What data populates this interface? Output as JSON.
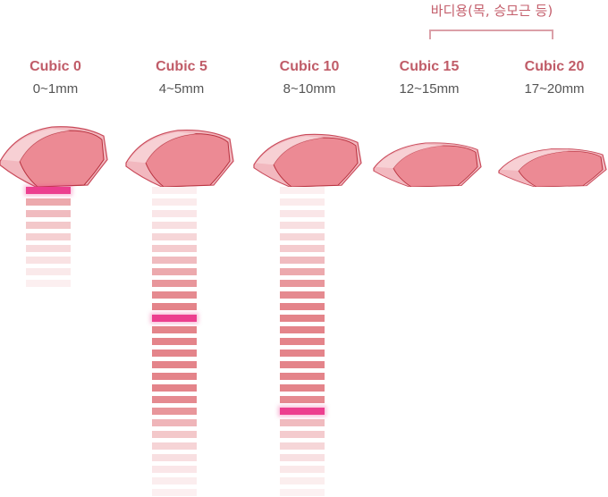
{
  "group_label": "바디용(목, 승모근 등)",
  "colors": {
    "title": "#c05c68",
    "bar": "#e4848a",
    "highlight": "#ec3f8f",
    "bracket": "#dba0a8"
  },
  "columns": [
    {
      "title": "Cubic 0",
      "range": "0~1mm",
      "bars": [
        1,
        0.7,
        0.55,
        0.45,
        0.38,
        0.3,
        0.24,
        0.18,
        0.13
      ],
      "highlight_index": 0
    },
    {
      "title": "Cubic 5",
      "range": "4~5mm",
      "bars": [
        0.13,
        0.16,
        0.2,
        0.26,
        0.33,
        0.42,
        0.55,
        0.7,
        0.85,
        0.95,
        1,
        1,
        1,
        1,
        1,
        1,
        1,
        1,
        0.95,
        0.85,
        0.6,
        0.45,
        0.35,
        0.26,
        0.2,
        0.15,
        0.12
      ],
      "highlight_index": 11
    },
    {
      "title": "Cubic 10",
      "range": "8~10mm",
      "bars": [
        0.13,
        0.16,
        0.2,
        0.26,
        0.33,
        0.42,
        0.55,
        0.7,
        0.85,
        0.95,
        1,
        1,
        1,
        1,
        1,
        1,
        1,
        1,
        0.95,
        1,
        0.55,
        0.42,
        0.33,
        0.25,
        0.19,
        0.14,
        0.11
      ],
      "highlight_index": 19
    },
    {
      "title": "Cubic 15",
      "range": "12~15mm",
      "bars": [],
      "highlight_index": -1
    },
    {
      "title": "Cubic 20",
      "range": "17~20mm",
      "bars": [],
      "highlight_index": -1
    }
  ]
}
